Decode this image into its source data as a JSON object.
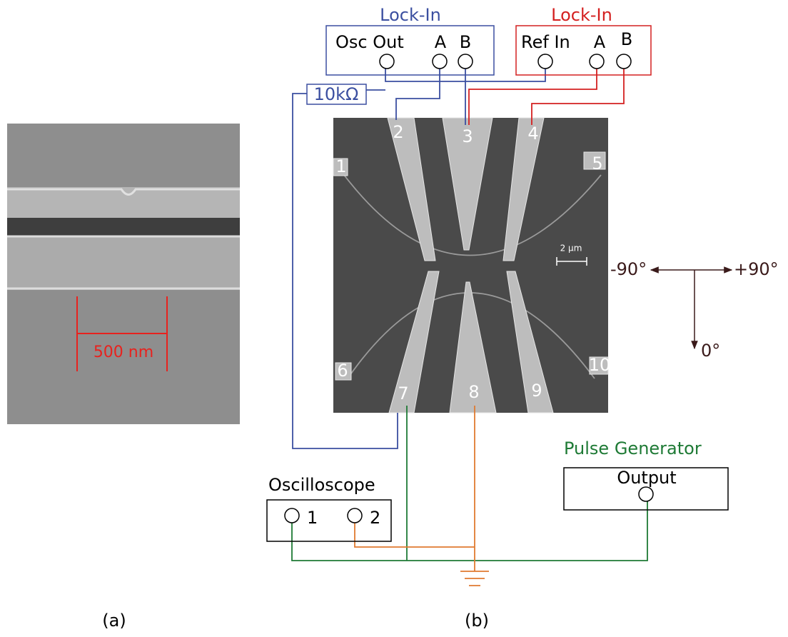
{
  "panel_a": {
    "scale_bar": "500 nm",
    "caption": "(a)"
  },
  "panel_b": {
    "caption": "(b)",
    "lock_in_blue": {
      "title": "Lock-In",
      "ports": [
        "Osc Out",
        "A",
        "B"
      ]
    },
    "lock_in_red": {
      "title": "Lock-In",
      "ports": [
        "Ref In",
        "A",
        "B"
      ]
    },
    "resistor": "10kΩ",
    "electrodes": [
      "1",
      "2",
      "3",
      "4",
      "5",
      "6",
      "7",
      "8",
      "9",
      "10"
    ],
    "sem_scale_bar": "2 μm",
    "angles": {
      "left": "-90°",
      "right": "+90°",
      "down": "0°"
    },
    "pulse_generator": {
      "title": "Pulse Generator",
      "port": "Output"
    },
    "oscilloscope": {
      "title": "Oscilloscope",
      "channels": [
        "1",
        "2"
      ]
    }
  }
}
